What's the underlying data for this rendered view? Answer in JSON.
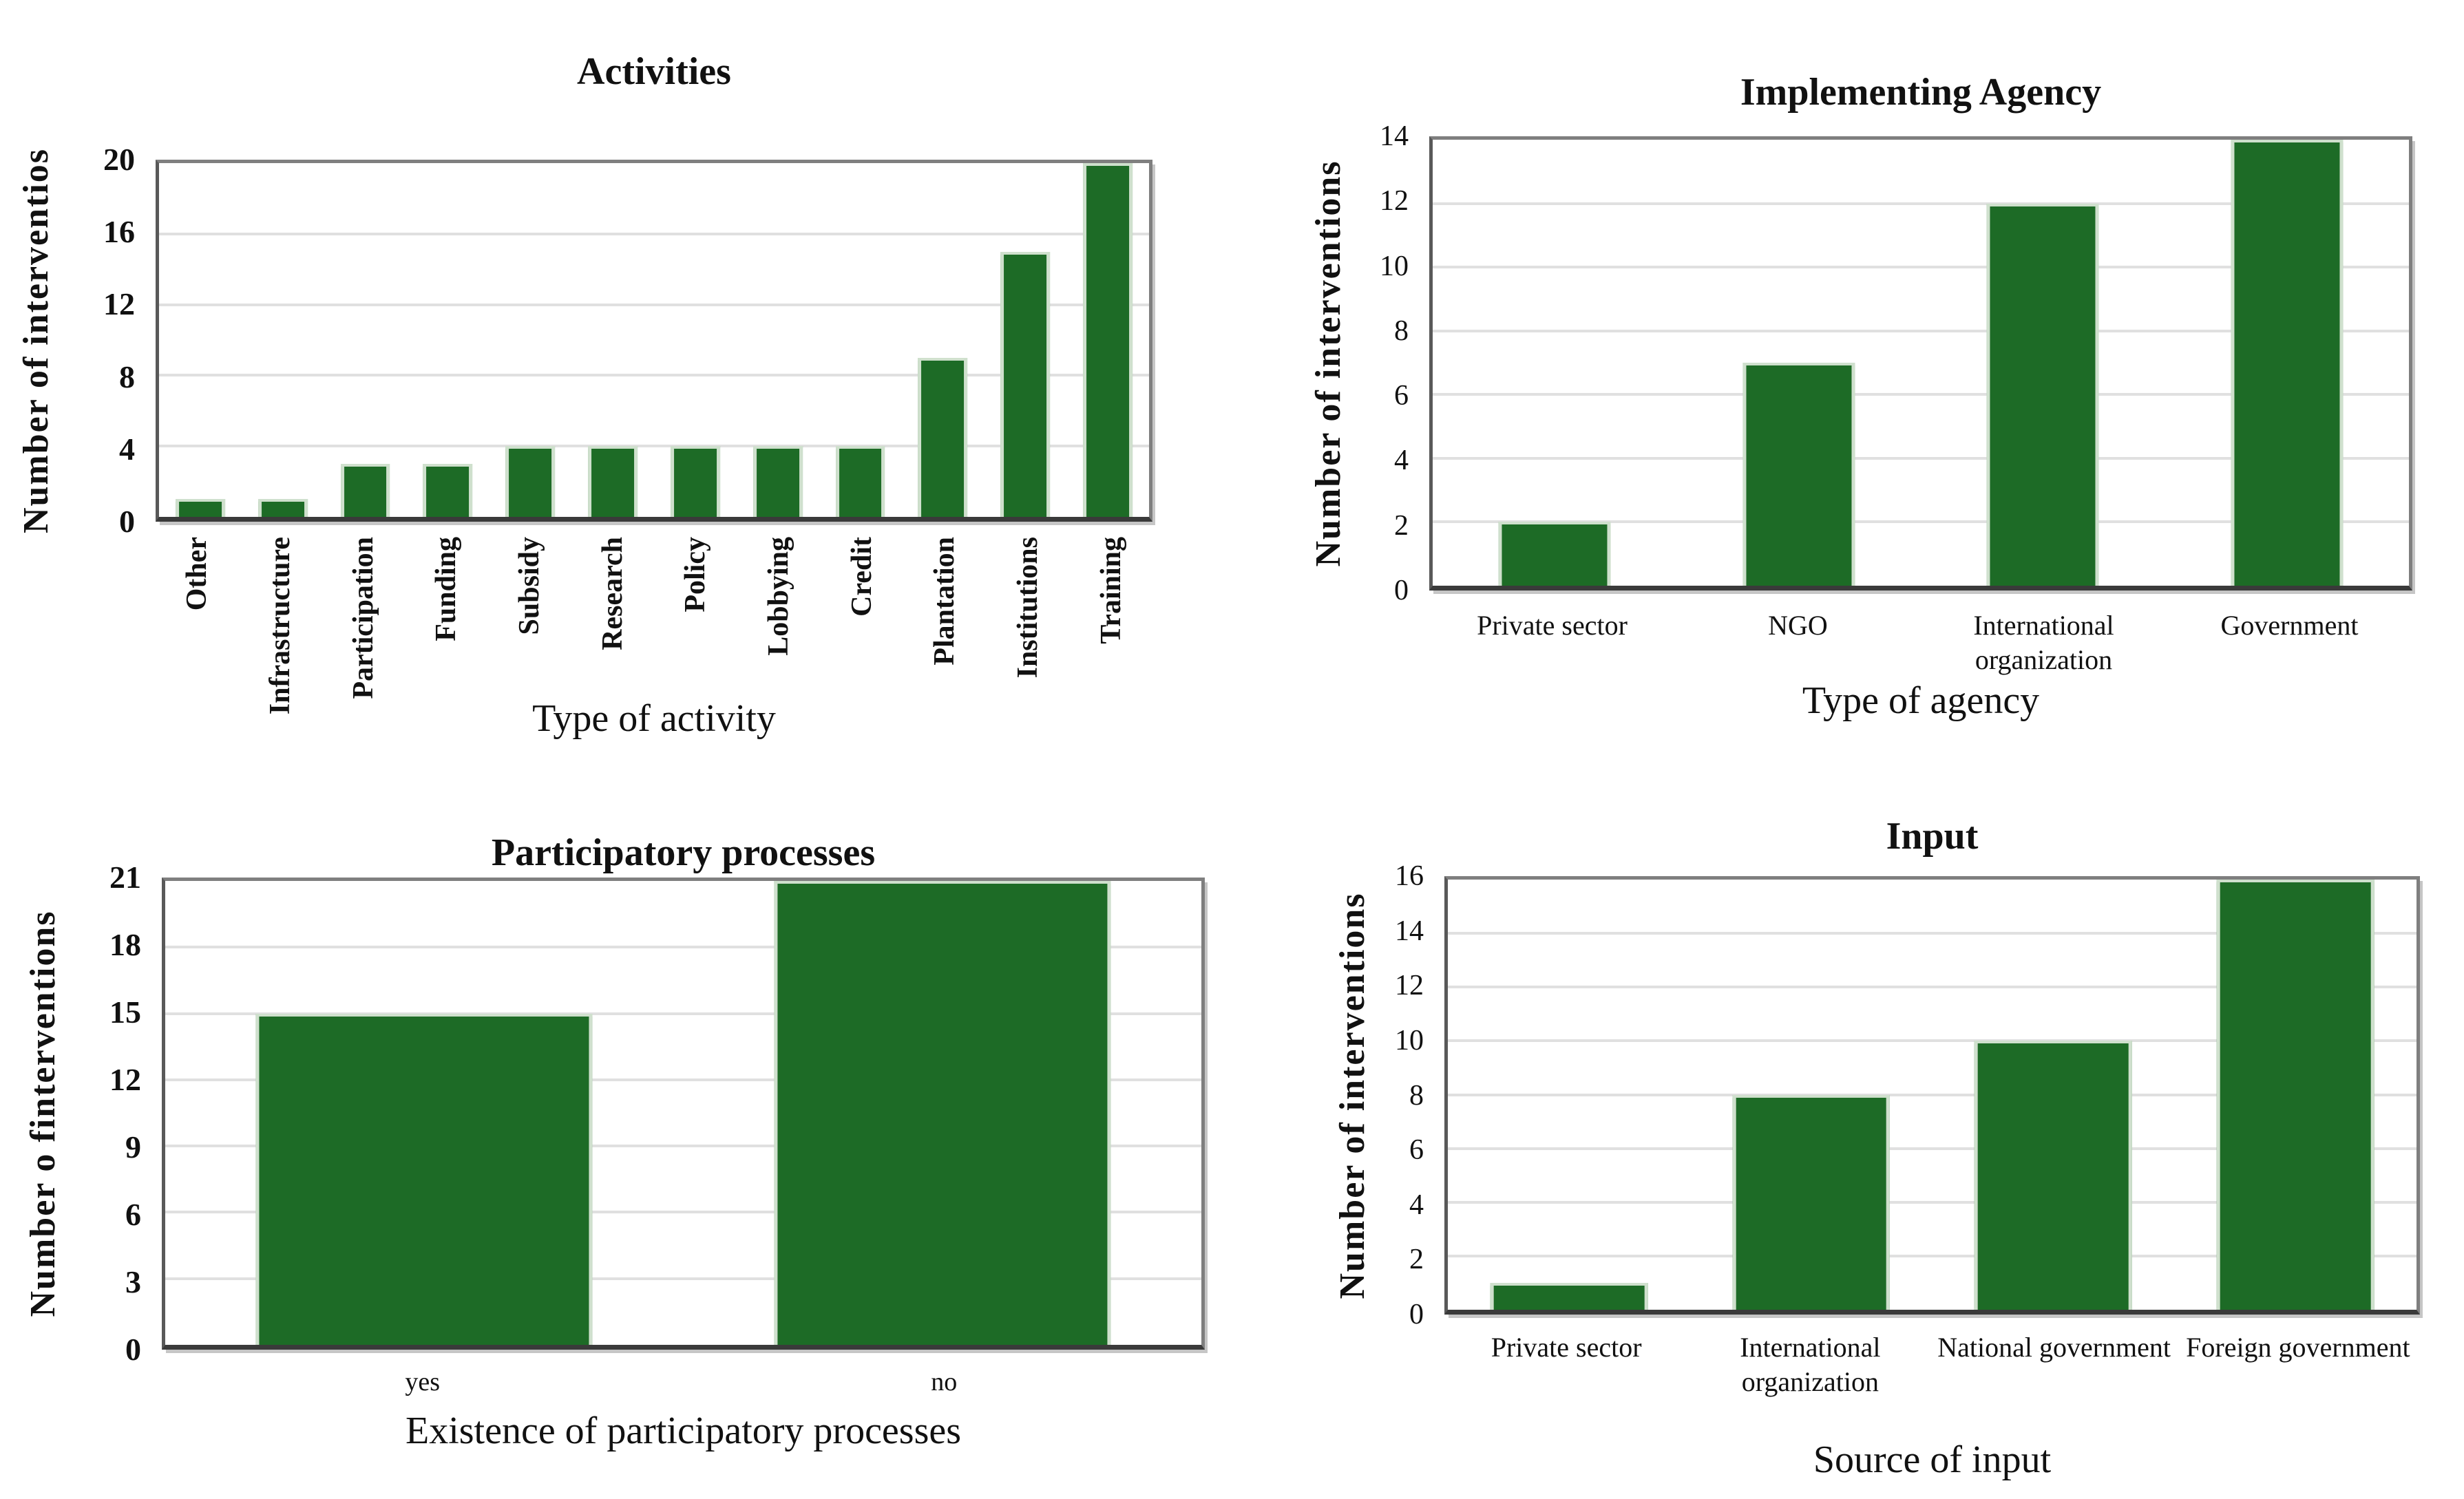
{
  "figure": {
    "background": "#ffffff"
  },
  "colors": {
    "bar_fill": "#1d6b26",
    "bar_edge_highlight": "#cfe0cd",
    "gridline": "#e0e0e0",
    "axis_dark": "#3a3a3a",
    "axis_mid": "#595959",
    "axis_gray": "#7f7f7f",
    "text": "#111111"
  },
  "chart_data": [
    {
      "type": "bar",
      "title": "Activities",
      "ylabel": "Number of interventios",
      "xlabel": "Type of activity",
      "categories": [
        "Other",
        "Infrastructure",
        "Participation",
        "Funding",
        "Subsidy",
        "Research",
        "Policy",
        "Lobbying",
        "Credit",
        "Plantation",
        "Institutions",
        "Training"
      ],
      "values": [
        1,
        1,
        3,
        3,
        4,
        4,
        4,
        4,
        4,
        9,
        15,
        20
      ],
      "ylim": [
        0,
        20
      ],
      "yticks": [
        0,
        4,
        8,
        12,
        16,
        20
      ],
      "grid": true,
      "legend": false,
      "x_tick_rotation": 90,
      "bar_width_frac": 0.6
    },
    {
      "type": "bar",
      "title": "Implementing Agency",
      "ylabel": "Number of interventions",
      "xlabel": "Type of agency",
      "categories": [
        "Private sector",
        "NGO",
        "International organization",
        "Government"
      ],
      "values": [
        2,
        7,
        12,
        14
      ],
      "ylim": [
        0,
        14
      ],
      "yticks": [
        0,
        2,
        4,
        6,
        8,
        10,
        12,
        14
      ],
      "grid": true,
      "legend": false,
      "x_tick_rotation": 0,
      "bar_width_frac": 0.46
    },
    {
      "type": "bar",
      "title": "Participatory processes",
      "ylabel": "Number o finterventions",
      "xlabel": "Existence of participatory processes",
      "categories": [
        "yes",
        "no"
      ],
      "values": [
        15,
        21
      ],
      "ylim": [
        0,
        21
      ],
      "yticks": [
        0,
        3,
        6,
        9,
        12,
        15,
        18,
        21
      ],
      "grid": true,
      "legend": false,
      "x_tick_rotation": 0,
      "bar_width_frac": 0.65
    },
    {
      "type": "bar",
      "title": "Input",
      "ylabel": "Number of interventions",
      "xlabel": "Source of input",
      "categories": [
        "Private sector",
        "International organization",
        "National government",
        "Foreign government"
      ],
      "values": [
        1,
        8,
        10,
        16
      ],
      "ylim": [
        0,
        16
      ],
      "yticks": [
        0,
        2,
        4,
        6,
        8,
        10,
        12,
        14,
        16
      ],
      "grid": true,
      "legend": false,
      "x_tick_rotation": 0,
      "bar_width_frac": 0.65
    }
  ]
}
